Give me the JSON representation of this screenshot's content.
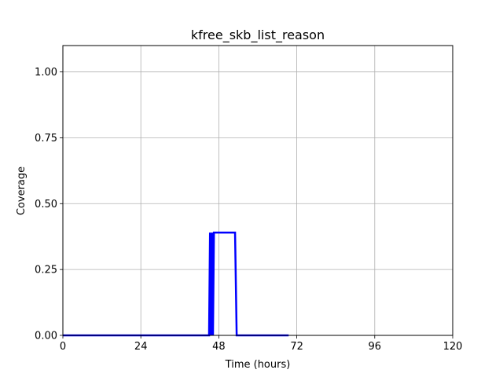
{
  "chart_data": {
    "type": "line",
    "title": "kfree_skb_list_reason",
    "xlabel": "Time (hours)",
    "ylabel": "Coverage",
    "xlim": [
      0,
      120
    ],
    "ylim": [
      0,
      1.1
    ],
    "x_ticks": [
      0,
      24,
      48,
      72,
      96,
      120
    ],
    "x_tick_labels": [
      "0",
      "24",
      "48",
      "72",
      "96",
      "120"
    ],
    "y_ticks": [
      0,
      0.25,
      0.5,
      0.75,
      1.0
    ],
    "y_tick_labels": [
      "0.00",
      "0.25",
      "0.50",
      "0.75",
      "1.00"
    ],
    "grid": true,
    "series": [
      {
        "color": "#0000ff",
        "x": [
          0,
          45.0,
          45.3,
          45.6,
          45.9,
          46.2,
          46.5,
          47.0,
          53.0,
          53.5,
          55,
          60,
          65,
          69.5
        ],
        "y": [
          0,
          0,
          0.39,
          0,
          0.39,
          0,
          0.39,
          0.39,
          0.39,
          0,
          0,
          0,
          0,
          0
        ]
      }
    ]
  }
}
